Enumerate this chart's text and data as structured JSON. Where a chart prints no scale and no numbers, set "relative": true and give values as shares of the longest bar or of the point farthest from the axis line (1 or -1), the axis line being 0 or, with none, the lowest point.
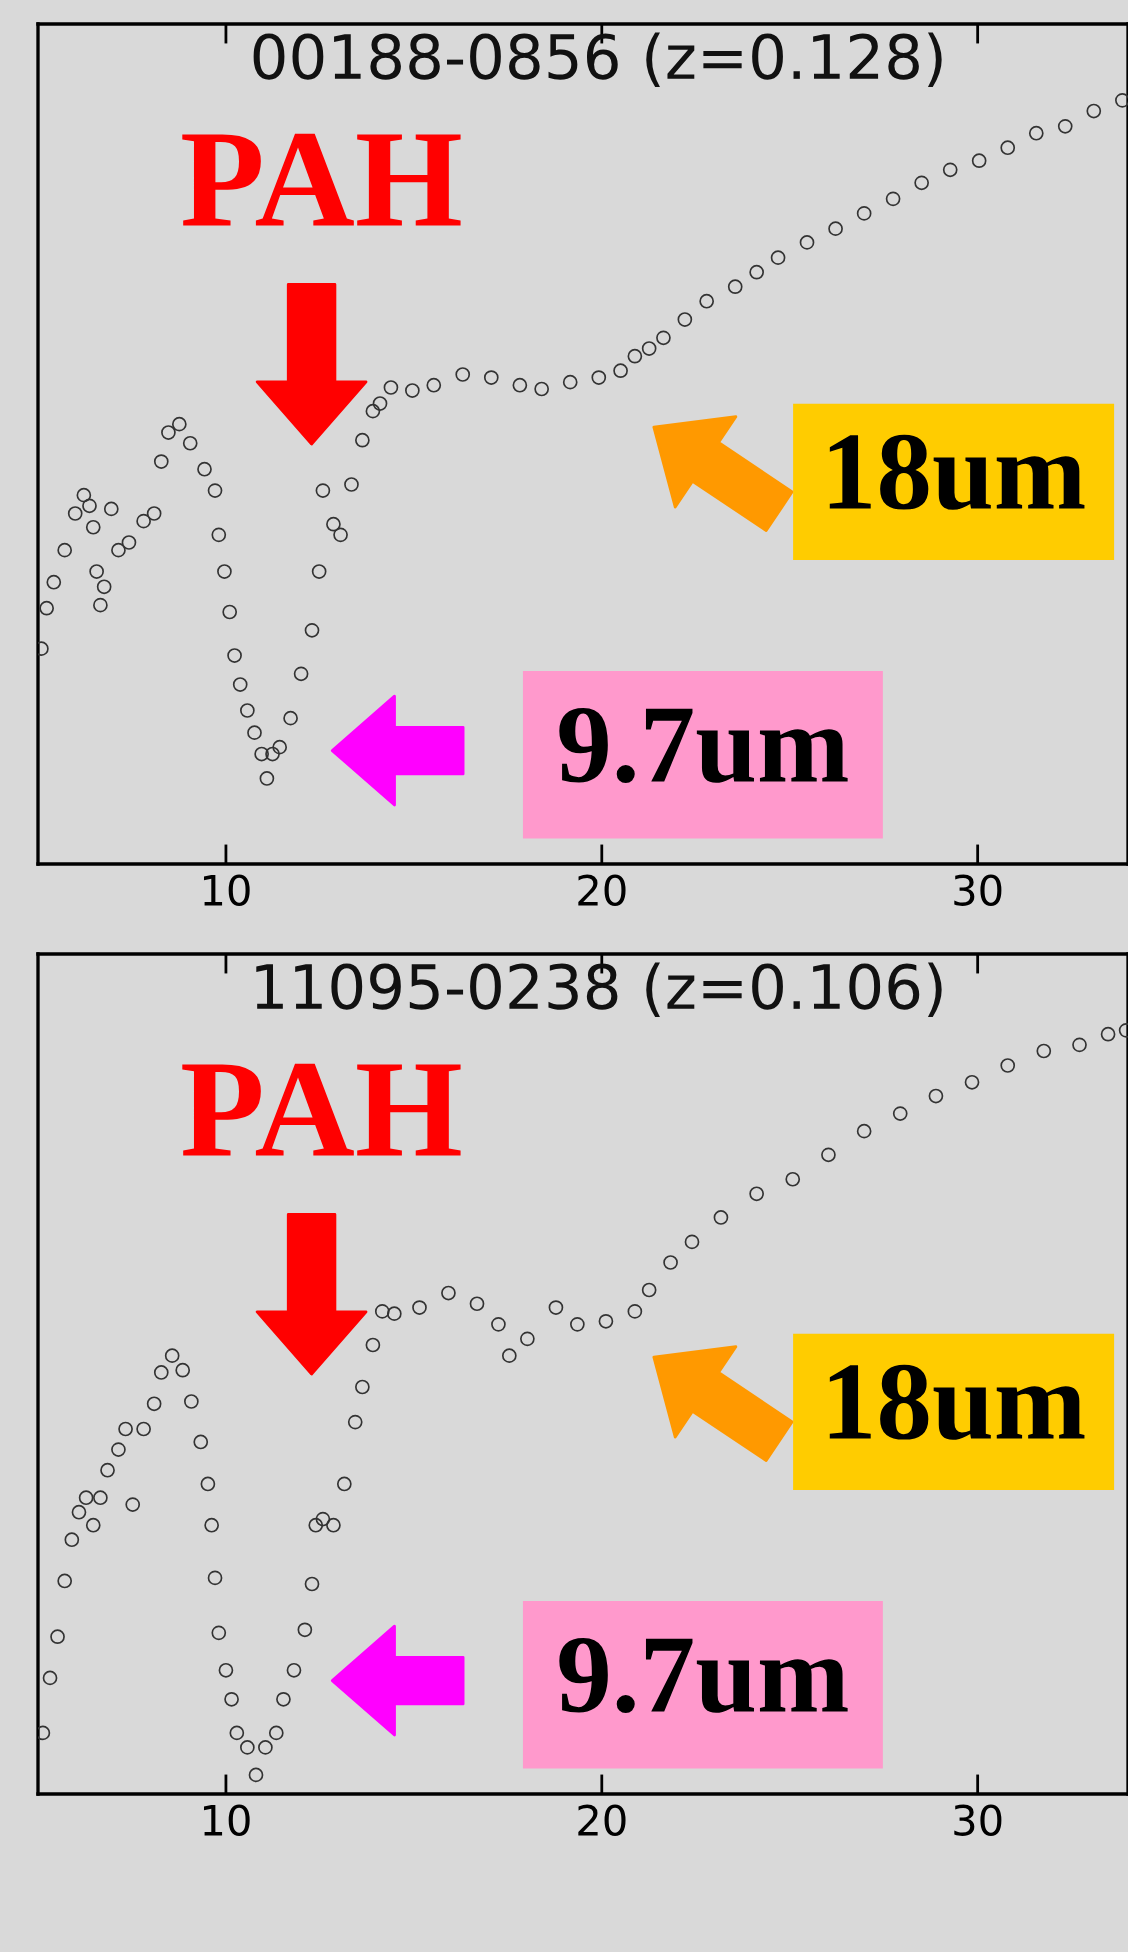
{
  "chart_data": [
    {
      "type": "scatter",
      "title": "00188-0856 (z=0.128)",
      "relative": true,
      "marker": "circle",
      "grid": false,
      "legend": false,
      "xlim": [
        5,
        34
      ],
      "xticks": [
        10,
        20,
        30
      ],
      "annotations": [
        "PAH",
        "18um",
        "9.7um"
      ],
      "series": [
        {
          "color": "#333333",
          "x": [
            5.09,
            5.23,
            5.42,
            5.71,
            5.99,
            6.22,
            6.37,
            6.47,
            6.56,
            6.66,
            6.76,
            6.95,
            7.14,
            7.42,
            7.81,
            8.09,
            8.28,
            8.47,
            8.76,
            9.05,
            9.43,
            9.71,
            9.81,
            9.96,
            10.1,
            10.23,
            10.38,
            10.57,
            10.76,
            10.95,
            11.09,
            11.24,
            11.43,
            11.72,
            12.0,
            12.29,
            12.48,
            12.58,
            12.86,
            13.05,
            13.34,
            13.63,
            13.91,
            14.1,
            14.39,
            14.96,
            15.53,
            16.3,
            17.06,
            17.82,
            18.4,
            19.16,
            19.92,
            20.5,
            20.88,
            21.26,
            21.64,
            22.21,
            22.79,
            23.55,
            24.12,
            24.69,
            25.46,
            26.22,
            26.98,
            27.75,
            28.51,
            29.27,
            30.04,
            30.8,
            31.56,
            32.33,
            33.09,
            33.85
          ],
          "values": [
            0.282,
            0.335,
            0.369,
            0.411,
            0.459,
            0.483,
            0.469,
            0.441,
            0.383,
            0.339,
            0.363,
            0.465,
            0.411,
            0.421,
            0.449,
            0.459,
            0.527,
            0.565,
            0.576,
            0.551,
            0.517,
            0.489,
            0.431,
            0.383,
            0.33,
            0.273,
            0.235,
            0.201,
            0.172,
            0.144,
            0.112,
            0.144,
            0.153,
            0.191,
            0.249,
            0.306,
            0.383,
            0.489,
            0.445,
            0.431,
            0.497,
            0.555,
            0.593,
            0.603,
            0.624,
            0.62,
            0.627,
            0.641,
            0.637,
            0.627,
            0.622,
            0.631,
            0.637,
            0.646,
            0.665,
            0.675,
            0.689,
            0.713,
            0.737,
            0.756,
            0.775,
            0.794,
            0.814,
            0.832,
            0.852,
            0.871,
            0.892,
            0.909,
            0.921,
            0.938,
            0.957,
            0.966,
            0.986,
            1
          ]
        }
      ]
    },
    {
      "type": "scatter",
      "title": "11095-0238 (z=0.106)",
      "relative": true,
      "marker": "circle",
      "grid": false,
      "legend": false,
      "xlim": [
        5,
        34
      ],
      "xticks": [
        10,
        20,
        30
      ],
      "annotations": [
        "PAH",
        "18um",
        "9.7um"
      ],
      "series": [
        {
          "color": "#333333",
          "x": [
            5.13,
            5.32,
            5.52,
            5.71,
            5.9,
            6.09,
            6.28,
            6.47,
            6.66,
            6.85,
            7.14,
            7.33,
            7.52,
            7.81,
            8.09,
            8.28,
            8.57,
            8.85,
            9.08,
            9.33,
            9.52,
            9.62,
            9.71,
            9.81,
            10.0,
            10.15,
            10.29,
            10.57,
            10.8,
            11.05,
            11.34,
            11.53,
            11.81,
            12.1,
            12.29,
            12.39,
            12.58,
            12.86,
            13.15,
            13.44,
            13.63,
            13.91,
            14.16,
            14.48,
            15.15,
            15.92,
            16.68,
            17.25,
            17.54,
            18.02,
            18.78,
            19.35,
            20.11,
            20.88,
            21.26,
            21.83,
            22.4,
            23.17,
            24.12,
            25.08,
            26.03,
            26.98,
            27.94,
            28.89,
            29.85,
            30.8,
            31.76,
            32.71,
            33.47,
            33.95
          ],
          "values": [
            0.08,
            0.152,
            0.206,
            0.279,
            0.333,
            0.369,
            0.388,
            0.352,
            0.388,
            0.424,
            0.451,
            0.478,
            0.379,
            0.478,
            0.511,
            0.552,
            0.574,
            0.555,
            0.514,
            0.461,
            0.406,
            0.352,
            0.283,
            0.211,
            0.162,
            0.124,
            0.08,
            0.061,
            0.025,
            0.061,
            0.08,
            0.124,
            0.162,
            0.215,
            0.275,
            0.352,
            0.36,
            0.352,
            0.406,
            0.487,
            0.533,
            0.588,
            0.632,
            0.629,
            0.637,
            0.656,
            0.642,
            0.615,
            0.574,
            0.596,
            0.637,
            0.615,
            0.619,
            0.632,
            0.66,
            0.696,
            0.723,
            0.755,
            0.786,
            0.805,
            0.837,
            0.868,
            0.891,
            0.914,
            0.932,
            0.954,
            0.973,
            0.981,
            0.995,
            1
          ]
        }
      ]
    }
  ]
}
